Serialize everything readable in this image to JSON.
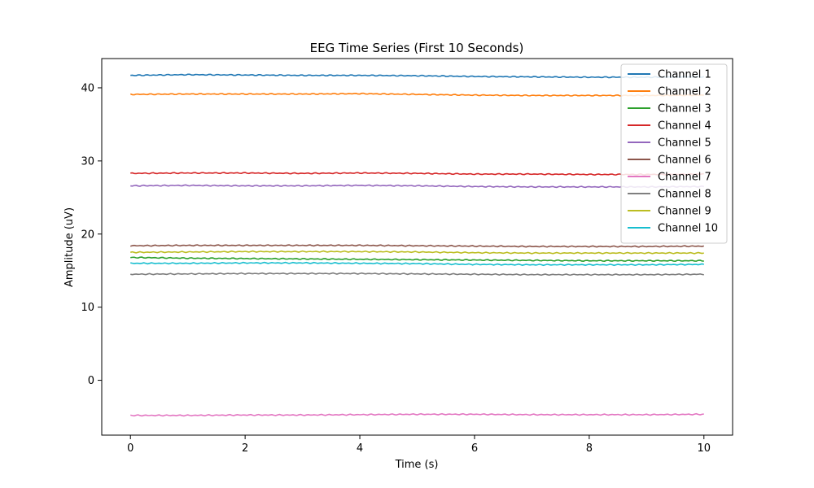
{
  "chart_data": {
    "type": "line",
    "title": "EEG Time Series (First 10 Seconds)",
    "xlabel": "Time (s)",
    "ylabel": "Amplitude (uV)",
    "xlim": [
      -0.5,
      10.5
    ],
    "ylim": [
      -7.5,
      44
    ],
    "xticks": [
      "0",
      "2",
      "4",
      "6",
      "8",
      "10"
    ],
    "yticks": [
      "0",
      "10",
      "20",
      "30",
      "40"
    ],
    "grid": false,
    "legend_position": "top-right",
    "series": [
      {
        "name": "Channel 1",
        "color": "#1f77b4",
        "x": [
          0,
          1,
          2,
          3,
          4,
          5,
          6,
          7,
          8,
          9,
          10
        ],
        "values": [
          41.7,
          41.8,
          41.75,
          41.7,
          41.7,
          41.65,
          41.55,
          41.5,
          41.45,
          41.45,
          41.5
        ]
      },
      {
        "name": "Channel 2",
        "color": "#ff7f0e",
        "x": [
          0,
          1,
          2,
          3,
          4,
          5,
          6,
          7,
          8,
          9,
          10
        ],
        "values": [
          39.1,
          39.15,
          39.15,
          39.15,
          39.2,
          39.1,
          39.0,
          38.95,
          38.95,
          38.95,
          39.0
        ]
      },
      {
        "name": "Channel 3",
        "color": "#2ca02c",
        "x": [
          0,
          1,
          2,
          3,
          4,
          5,
          6,
          7,
          8,
          9,
          10
        ],
        "values": [
          16.8,
          16.7,
          16.65,
          16.6,
          16.55,
          16.5,
          16.45,
          16.4,
          16.35,
          16.35,
          16.35
        ]
      },
      {
        "name": "Channel 4",
        "color": "#d62728",
        "x": [
          0,
          1,
          2,
          3,
          4,
          5,
          6,
          7,
          8,
          9,
          10
        ],
        "values": [
          28.3,
          28.35,
          28.35,
          28.3,
          28.35,
          28.3,
          28.2,
          28.2,
          28.15,
          28.15,
          28.2
        ]
      },
      {
        "name": "Channel 5",
        "color": "#9467bd",
        "x": [
          0,
          1,
          2,
          3,
          4,
          5,
          6,
          7,
          8,
          9,
          10
        ],
        "values": [
          26.6,
          26.65,
          26.6,
          26.6,
          26.65,
          26.6,
          26.5,
          26.45,
          26.45,
          26.45,
          26.5
        ]
      },
      {
        "name": "Channel 6",
        "color": "#8c564b",
        "x": [
          0,
          1,
          2,
          3,
          4,
          5,
          6,
          7,
          8,
          9,
          10
        ],
        "values": [
          18.4,
          18.45,
          18.45,
          18.45,
          18.45,
          18.4,
          18.35,
          18.3,
          18.3,
          18.3,
          18.35
        ]
      },
      {
        "name": "Channel 7",
        "color": "#e377c2",
        "x": [
          0,
          1,
          2,
          3,
          4,
          5,
          6,
          7,
          8,
          9,
          10
        ],
        "values": [
          -4.8,
          -4.8,
          -4.75,
          -4.75,
          -4.7,
          -4.65,
          -4.65,
          -4.7,
          -4.7,
          -4.7,
          -4.65
        ]
      },
      {
        "name": "Channel 8",
        "color": "#7f7f7f",
        "x": [
          0,
          1,
          2,
          3,
          4,
          5,
          6,
          7,
          8,
          9,
          10
        ],
        "values": [
          14.5,
          14.55,
          14.6,
          14.6,
          14.6,
          14.55,
          14.5,
          14.45,
          14.45,
          14.45,
          14.5
        ]
      },
      {
        "name": "Channel 9",
        "color": "#bcbd22",
        "x": [
          0,
          1,
          2,
          3,
          4,
          5,
          6,
          7,
          8,
          9,
          10
        ],
        "values": [
          17.5,
          17.55,
          17.6,
          17.6,
          17.6,
          17.55,
          17.45,
          17.4,
          17.4,
          17.4,
          17.4
        ]
      },
      {
        "name": "Channel 10",
        "color": "#17becf",
        "x": [
          0,
          1,
          2,
          3,
          4,
          5,
          6,
          7,
          8,
          9,
          10
        ],
        "values": [
          16.0,
          16.0,
          16.05,
          16.05,
          16.0,
          15.95,
          15.85,
          15.8,
          15.8,
          15.8,
          15.85
        ]
      }
    ]
  }
}
